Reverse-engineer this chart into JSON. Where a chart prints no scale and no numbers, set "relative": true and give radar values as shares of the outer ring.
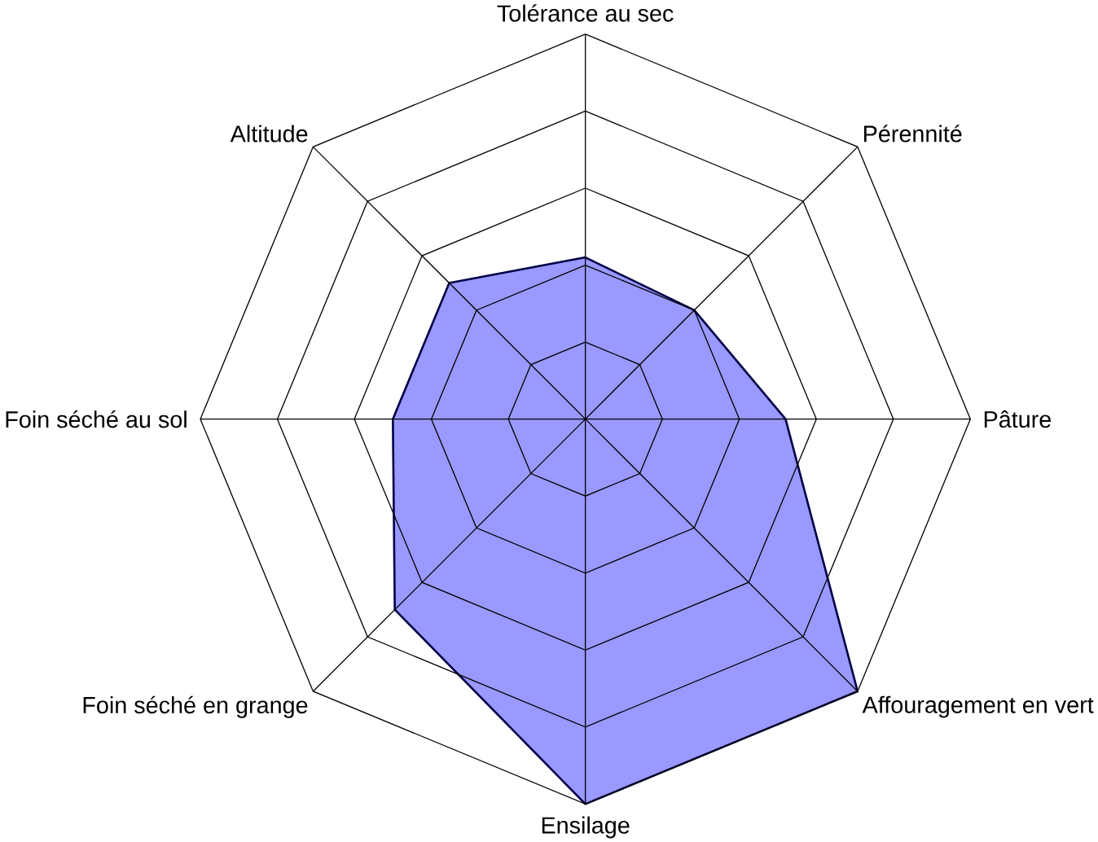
{
  "chart_data": {
    "type": "radar",
    "relative": true,
    "grid": true,
    "categories": [
      "Tolérance au sec",
      "Pérennité",
      "Pâture",
      "Affouragement en vert",
      "Ensilage",
      "Foin séché en grange",
      "Foin séché au sol",
      "Altitude"
    ],
    "series": [
      {
        "color": "#9999ff",
        "values": [
          0.42,
          0.4,
          0.52,
          1,
          1,
          0.7,
          0.5,
          0.5
        ]
      }
    ]
  }
}
